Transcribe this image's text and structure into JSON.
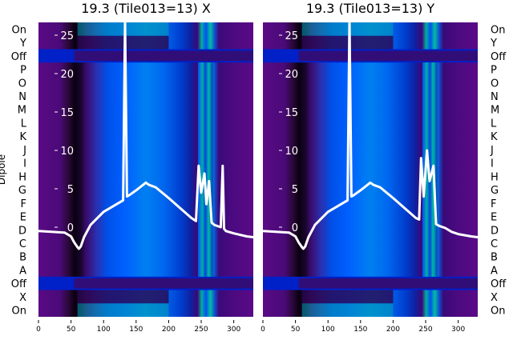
{
  "chart_data": [
    {
      "type": "heatmap",
      "title": "19.3 (Tile013=13) X",
      "ylabel": "Dipole",
      "row_labels": [
        "On",
        "Y",
        "Off",
        "P",
        "O",
        "N",
        "M",
        "L",
        "K",
        "J",
        "I",
        "H",
        "G",
        "F",
        "E",
        "D",
        "C",
        "B",
        "A",
        "Off",
        "X",
        "On"
      ],
      "x_ticks": [
        0,
        50,
        100,
        150,
        200,
        250,
        300
      ],
      "xlim": [
        0,
        330
      ],
      "overlay_ylim": [
        -2,
        27
      ],
      "overlay_y_ticks": [
        0,
        5,
        10,
        15,
        20,
        25
      ],
      "colormap": "black-purple-blue-teal-green",
      "overlay_color": "#ffffff",
      "spectrum": {
        "x": [
          0,
          20,
          40,
          50,
          55,
          60,
          62,
          65,
          70,
          80,
          100,
          120,
          130,
          133,
          136,
          140,
          150,
          165,
          170,
          180,
          200,
          220,
          235,
          242,
          246,
          250,
          255,
          258,
          262,
          266,
          270,
          280,
          283,
          285,
          288,
          300,
          320,
          330
        ],
        "y": [
          -0.5,
          -0.6,
          -0.7,
          -1.2,
          -2.0,
          -2.6,
          -2.8,
          -2.5,
          -1.3,
          0.3,
          2.0,
          3.0,
          3.5,
          27,
          4.0,
          4.2,
          4.8,
          5.8,
          5.5,
          5.2,
          3.8,
          2.3,
          1.2,
          0.8,
          8.0,
          4.5,
          7.0,
          3.0,
          6.0,
          0.6,
          0.3,
          0.0,
          8.0,
          -0.2,
          -0.5,
          -0.8,
          -1.2,
          -1.3
        ]
      }
    },
    {
      "type": "heatmap",
      "title": "19.3 (Tile013=13) Y",
      "ylabel": "",
      "row_labels": [
        "On",
        "Y",
        "Off",
        "P",
        "O",
        "N",
        "M",
        "L",
        "K",
        "J",
        "I",
        "H",
        "G",
        "F",
        "E",
        "D",
        "C",
        "B",
        "A",
        "Off",
        "X",
        "On"
      ],
      "x_ticks": [
        0,
        50,
        100,
        150,
        200,
        250,
        300
      ],
      "xlim": [
        0,
        330
      ],
      "overlay_ylim": [
        -2,
        27
      ],
      "overlay_y_ticks": [
        0,
        5,
        10,
        15,
        20,
        25
      ],
      "colormap": "black-purple-blue-teal-green",
      "overlay_color": "#ffffff",
      "spectrum": {
        "x": [
          0,
          20,
          40,
          50,
          55,
          60,
          62,
          65,
          70,
          80,
          100,
          120,
          130,
          133,
          136,
          140,
          150,
          165,
          170,
          180,
          200,
          220,
          235,
          240,
          243,
          247,
          252,
          256,
          262,
          266,
          270,
          280,
          290,
          300,
          320,
          330
        ],
        "y": [
          -0.5,
          -0.6,
          -0.7,
          -1.2,
          -2.0,
          -2.6,
          -2.8,
          -2.5,
          -1.3,
          0.3,
          2.0,
          3.0,
          3.5,
          27,
          4.0,
          4.2,
          4.8,
          5.8,
          5.5,
          5.2,
          3.8,
          2.3,
          1.2,
          1.0,
          9.0,
          4.0,
          10.0,
          6.0,
          8.0,
          0.4,
          0.2,
          -0.1,
          -0.6,
          -0.9,
          -1.2,
          -1.3
        ]
      }
    }
  ]
}
